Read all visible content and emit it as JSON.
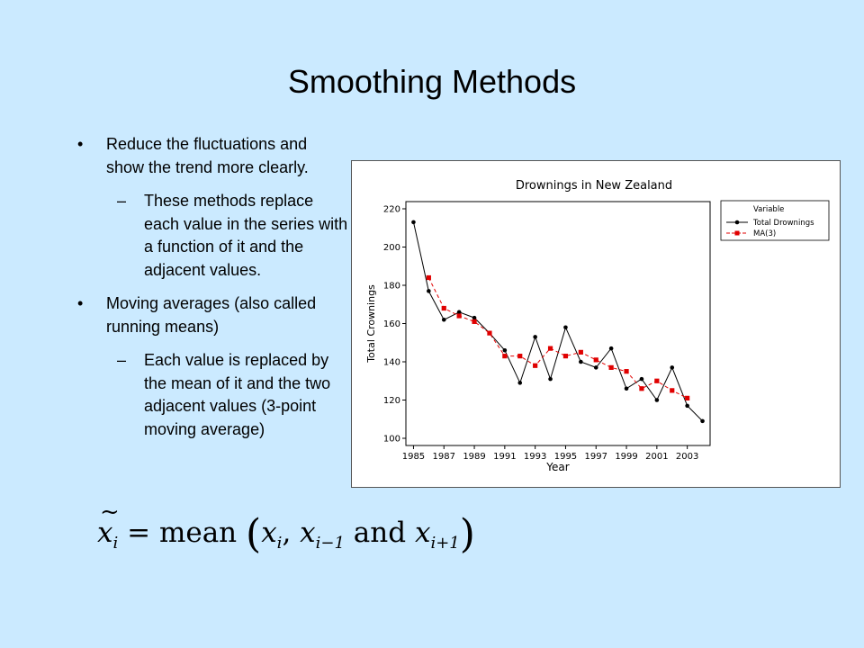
{
  "slide": {
    "title": "Smoothing Methods",
    "bullets": [
      {
        "level": 1,
        "marker": "•",
        "text": "Reduce the fluctuations and show the trend more clearly."
      },
      {
        "level": 2,
        "marker": "–",
        "text": "These methods replace each value in the series with a function of it and the adjacent values."
      },
      {
        "level": 1,
        "marker": "•",
        "text": "Moving averages (also called running means)"
      },
      {
        "level": 2,
        "marker": "–",
        "text": "Each value is replaced by the mean of it and the two adjacent values (3-point moving average)"
      }
    ],
    "formula": {
      "lhs": "x",
      "lhs_sub": "i",
      "tilde": "~",
      "eq": "=",
      "fn": "mean",
      "open": "(",
      "a": "x",
      "a_sub": "i",
      "comma": ",",
      "b": "x",
      "b_sub": "i−1",
      "and": "and",
      "c": "x",
      "c_sub": "i+1",
      "close": ")"
    }
  },
  "chart_data": {
    "type": "line",
    "title": "Drownings in New Zealand",
    "xlabel": "Year",
    "ylabel": "Total Crownings",
    "xlim": [
      1985,
      2004
    ],
    "ylim": [
      100,
      220
    ],
    "xticks": [
      1985,
      1987,
      1989,
      1991,
      1993,
      1995,
      1997,
      1999,
      2001,
      2003
    ],
    "yticks": [
      100,
      120,
      140,
      160,
      180,
      200,
      220
    ],
    "grid": false,
    "legend": {
      "placement": "right",
      "title": "Variable",
      "entries": [
        "Total Drownings",
        "MA(3)"
      ]
    },
    "series": [
      {
        "name": "Total Drownings",
        "color": "#000000",
        "marker": "diamond",
        "x": [
          1985,
          1986,
          1987,
          1988,
          1989,
          1990,
          1991,
          1992,
          1993,
          1994,
          1995,
          1996,
          1997,
          1998,
          1999,
          2000,
          2001,
          2002,
          2003,
          2004
        ],
        "y": [
          213,
          177,
          162,
          166,
          163,
          155,
          146,
          129,
          153,
          131,
          158,
          140,
          137,
          147,
          126,
          131,
          120,
          137,
          117,
          109
        ]
      },
      {
        "name": "MA(3)",
        "color": "#e00000",
        "marker": "square",
        "x": [
          1986,
          1987,
          1988,
          1989,
          1990,
          1991,
          1992,
          1993,
          1994,
          1995,
          1996,
          1997,
          1998,
          1999,
          2000,
          2001,
          2002,
          2003
        ],
        "y": [
          184,
          168,
          164,
          161,
          155,
          143,
          143,
          138,
          147,
          143,
          145,
          141,
          137,
          135,
          126,
          130,
          125,
          121
        ]
      }
    ]
  }
}
